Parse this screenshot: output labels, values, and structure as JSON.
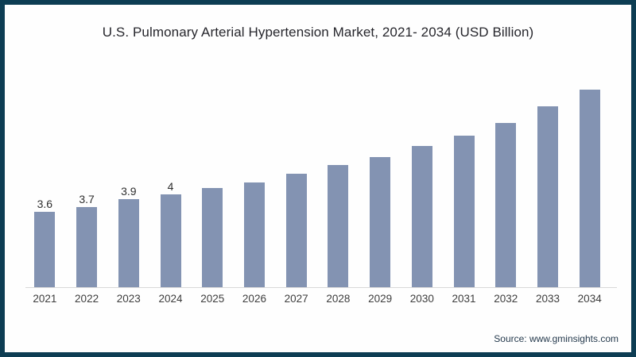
{
  "source": "Source: www.gminsights.com",
  "colors": {
    "bar": "#8393b2",
    "frame_border": "#0d3d53",
    "background": "#fefefe",
    "axis_line": "#d9d9d9",
    "title_text": "#26262c",
    "value_label_text": "#2e2e2e",
    "tick_text": "#3d3d3d",
    "source_text": "#253a4d"
  },
  "chart_data": {
    "type": "bar",
    "title": "U.S. Pulmonary Arterial Hypertension Market, 2021- 2034 (USD Billion)",
    "categories": [
      "2021",
      "2022",
      "2023",
      "2024",
      "2025",
      "2026",
      "2027",
      "2028",
      "2029",
      "2030",
      "2031",
      "2032",
      "2033",
      "2034"
    ],
    "values": [
      3.6,
      3.7,
      3.9,
      4.0,
      4.15,
      4.3,
      4.5,
      4.7,
      4.9,
      5.15,
      5.4,
      5.7,
      6.1,
      6.5
    ],
    "data_labels": [
      "3.6",
      "3.7",
      "3.9",
      "4",
      null,
      null,
      null,
      null,
      null,
      null,
      null,
      null,
      null,
      null
    ],
    "xlabel": "",
    "ylabel": "",
    "y_baseline": 1.8,
    "grid": false,
    "legend": "none"
  }
}
